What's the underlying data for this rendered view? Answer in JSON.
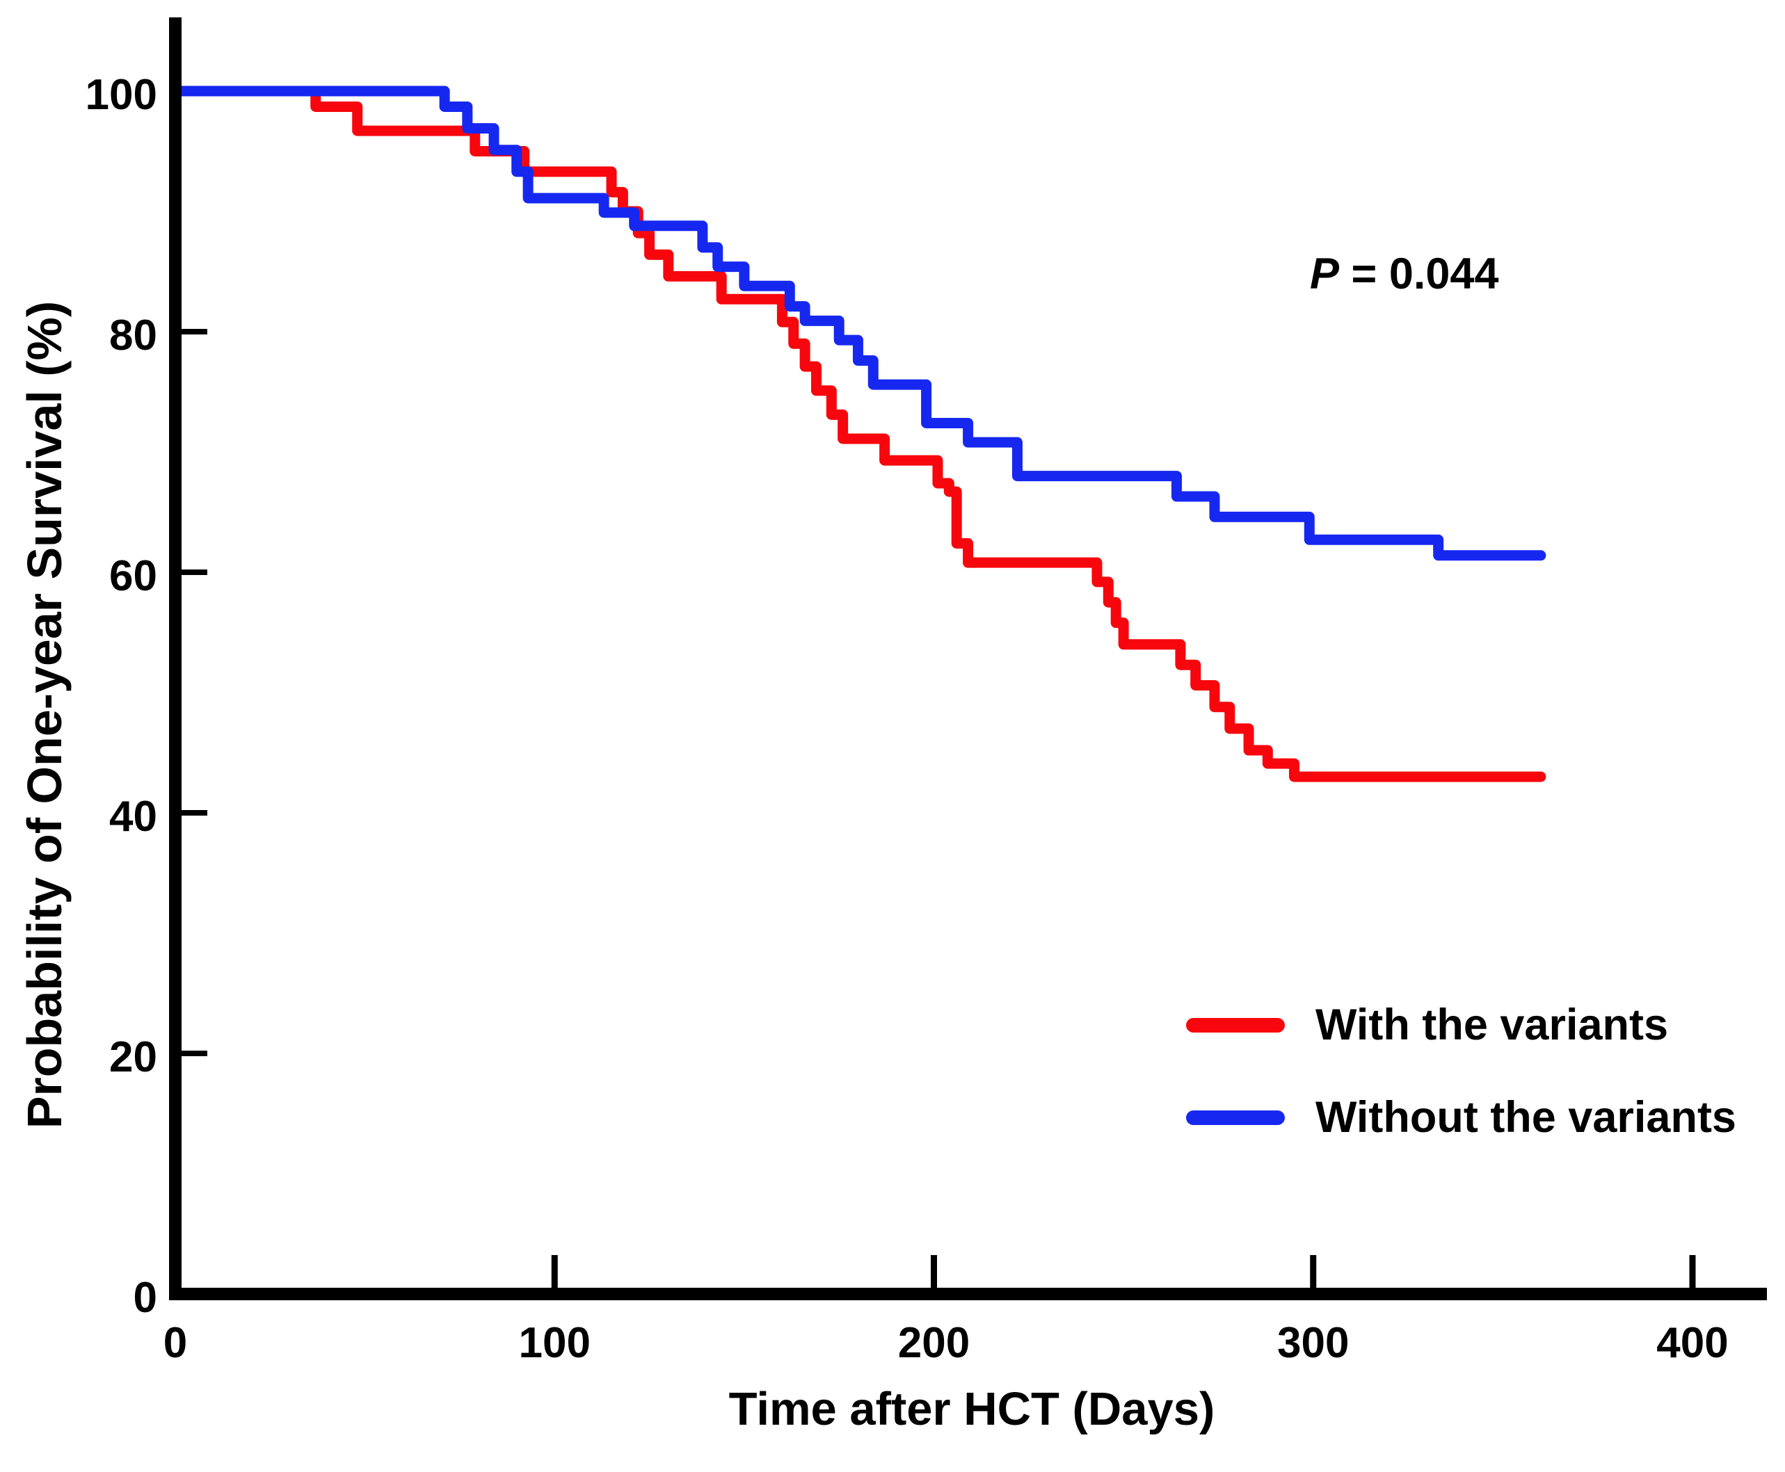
{
  "figure": {
    "p_annotation": {
      "symbol": "P",
      "rest": " = 0.044"
    }
  },
  "chart_data": {
    "type": "line",
    "subtype": "kaplan-meier-step-curves",
    "title": "",
    "xlabel": "Time after HCT (Days)",
    "ylabel": "Probability of One-year Survival (%)",
    "xlim": [
      0,
      420
    ],
    "ylim": [
      0,
      100
    ],
    "x_ticks": [
      0,
      100,
      200,
      300,
      400
    ],
    "y_ticks": [
      0,
      20,
      40,
      60,
      80,
      100
    ],
    "grid": false,
    "legend_position": "lower right",
    "annotation": "P = 0.044",
    "axis_color": "#000000",
    "series": [
      {
        "name": "With the variants",
        "color": "#f7070d",
        "end_day": 360,
        "steps": [
          [
            0,
            100
          ],
          [
            37,
            98.7
          ],
          [
            48,
            96.7
          ],
          [
            79,
            95.0
          ],
          [
            92,
            93.3
          ],
          [
            115,
            91.6
          ],
          [
            118,
            90.0
          ],
          [
            122,
            88.2
          ],
          [
            125,
            86.4
          ],
          [
            130,
            84.6
          ],
          [
            144,
            82.7
          ],
          [
            160,
            80.8
          ],
          [
            163,
            79.0
          ],
          [
            166,
            77.1
          ],
          [
            169,
            75.1
          ],
          [
            173,
            73.1
          ],
          [
            176,
            71.1
          ],
          [
            187,
            69.3
          ],
          [
            201,
            67.4
          ],
          [
            204,
            66.7
          ],
          [
            206,
            62.4
          ],
          [
            209,
            60.8
          ],
          [
            243,
            59.2
          ],
          [
            246,
            57.5
          ],
          [
            248,
            55.8
          ],
          [
            250,
            54.0
          ],
          [
            265,
            52.3
          ],
          [
            269,
            50.6
          ],
          [
            274,
            48.8
          ],
          [
            278,
            47.0
          ],
          [
            283,
            45.2
          ],
          [
            288,
            44.1
          ],
          [
            295,
            43.0
          ]
        ]
      },
      {
        "name": "Without the variants",
        "color": "#1628f0",
        "end_day": 360,
        "steps": [
          [
            0,
            100
          ],
          [
            71,
            98.7
          ],
          [
            77,
            96.9
          ],
          [
            84,
            95.1
          ],
          [
            90,
            93.3
          ],
          [
            93,
            91.1
          ],
          [
            113,
            89.9
          ],
          [
            121,
            88.8
          ],
          [
            139,
            87.0
          ],
          [
            143,
            85.4
          ],
          [
            150,
            83.8
          ],
          [
            162,
            82.1
          ],
          [
            166,
            80.9
          ],
          [
            175,
            79.3
          ],
          [
            180,
            77.6
          ],
          [
            184,
            75.6
          ],
          [
            198,
            72.4
          ],
          [
            209,
            70.8
          ],
          [
            222,
            68.0
          ],
          [
            264,
            66.3
          ],
          [
            274,
            64.6
          ],
          [
            299,
            62.7
          ],
          [
            333,
            61.4
          ]
        ]
      }
    ]
  }
}
